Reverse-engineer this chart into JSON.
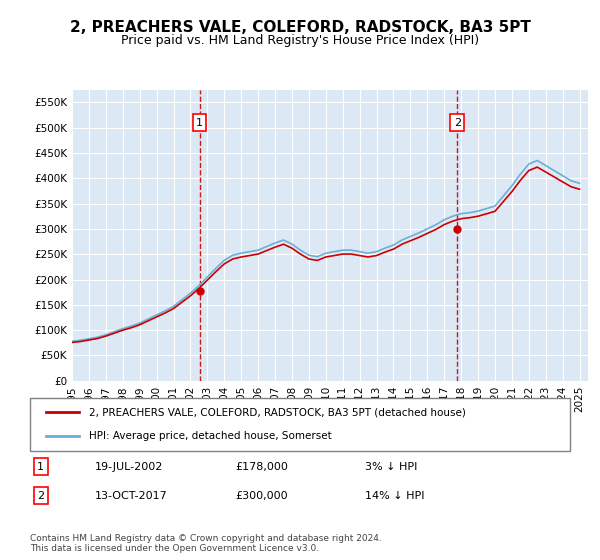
{
  "title": "2, PREACHERS VALE, COLEFORD, RADSTOCK, BA3 5PT",
  "subtitle": "Price paid vs. HM Land Registry's House Price Index (HPI)",
  "background_color": "#dce9f5",
  "plot_bg_color": "#dce9f5",
  "hpi_color": "#6baed6",
  "price_color": "#cc0000",
  "vline_color": "#cc0000",
  "ylim": [
    0,
    575000
  ],
  "yticks": [
    0,
    50000,
    100000,
    150000,
    200000,
    250000,
    300000,
    350000,
    400000,
    450000,
    500000,
    550000
  ],
  "legend_label_price": "2, PREACHERS VALE, COLEFORD, RADSTOCK, BA3 5PT (detached house)",
  "legend_label_hpi": "HPI: Average price, detached house, Somerset",
  "transaction1_date": "19-JUL-2002",
  "transaction1_price": 178000,
  "transaction1_hpi_pct": "3%",
  "transaction2_date": "13-OCT-2017",
  "transaction2_price": 300000,
  "transaction2_hpi_pct": "14%",
  "footer": "Contains HM Land Registry data © Crown copyright and database right 2024.\nThis data is licensed under the Open Government Licence v3.0."
}
